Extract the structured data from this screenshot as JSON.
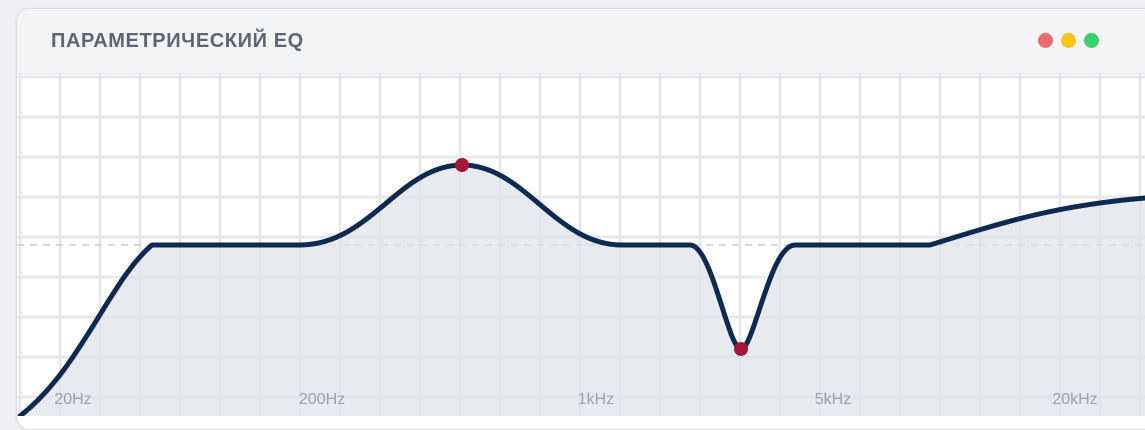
{
  "window": {
    "title": "ПАРАМЕТРИЧЕСКИЙ EQ",
    "controls": [
      {
        "name": "close",
        "color": "#ef6b6b"
      },
      {
        "name": "minimize",
        "color": "#f5c518"
      },
      {
        "name": "maximize",
        "color": "#3ccf6d"
      }
    ]
  },
  "eq": {
    "frequency_labels": [
      {
        "text": "20Hz"
      },
      {
        "text": "200Hz"
      },
      {
        "text": "1kHz"
      },
      {
        "text": "5kHz"
      },
      {
        "text": "20kHz"
      }
    ],
    "colors": {
      "curve": "#0e2a52",
      "fill": "#dfe3ea",
      "control_point": "#a3183a",
      "grid": "#e6e8ec",
      "zero_line": "#c7cbd2",
      "label": "#9aa2ae"
    },
    "control_points": [
      {
        "name": "peak-band"
      },
      {
        "name": "notch-band"
      }
    ]
  }
}
